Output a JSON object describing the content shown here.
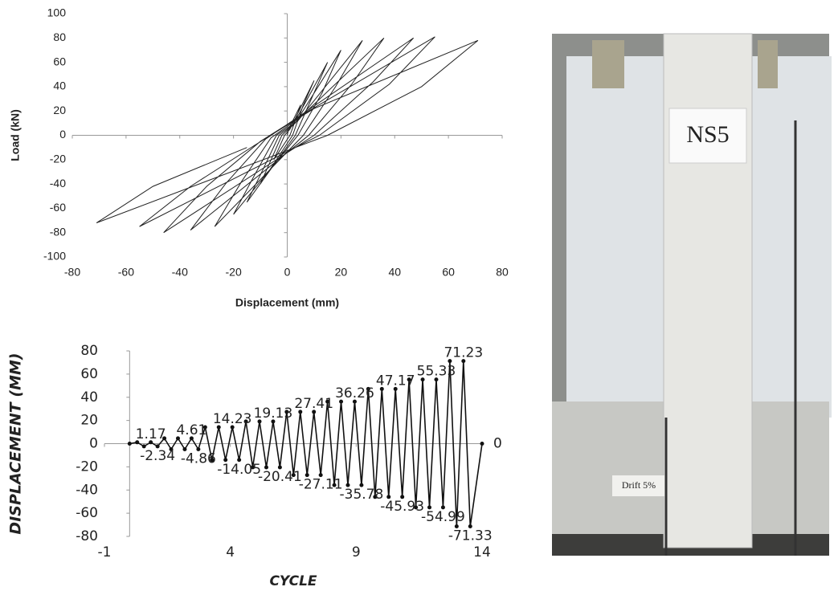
{
  "chart_data": [
    {
      "type": "line",
      "x_label": "Displacement (mm)",
      "y_label": "Load (kN)",
      "color": "#222",
      "x": [
        0,
        0.5,
        5,
        3,
        1,
        -5,
        -3,
        -1,
        1,
        10,
        6,
        2,
        -10,
        -6,
        -2,
        2,
        15,
        9,
        3,
        -15,
        -9,
        -3,
        3,
        20,
        13,
        4,
        -20,
        -12,
        -4,
        4,
        28,
        18,
        6,
        -27,
        -17,
        -6,
        5,
        36,
        24,
        8,
        -36,
        -23,
        -8,
        6,
        47,
        32,
        10,
        -46,
        -30,
        -10,
        8,
        55,
        38,
        12,
        -55,
        -36,
        -12,
        10,
        71,
        50,
        15,
        -71,
        -50,
        -15
      ],
      "values": [
        0,
        5,
        25,
        12,
        0,
        -20,
        -10,
        0,
        5,
        45,
        25,
        0,
        -40,
        -20,
        0,
        8,
        60,
        30,
        0,
        -55,
        -28,
        0,
        10,
        70,
        35,
        0,
        -65,
        -32,
        0,
        12,
        78,
        40,
        0,
        -75,
        -38,
        -2,
        15,
        80,
        42,
        0,
        -78,
        -40,
        -3,
        18,
        80,
        44,
        0,
        -80,
        -42,
        -5,
        20,
        81,
        42,
        0,
        -75,
        -42,
        -8,
        22,
        78,
        40,
        0,
        -72,
        -42,
        -10
      ],
      "xlim": [
        -80,
        80
      ],
      "xticks": [
        -80,
        -60,
        -40,
        -20,
        0,
        20,
        40,
        60,
        80
      ],
      "ylim": [
        -100,
        100
      ],
      "yticks": [
        -100,
        -80,
        -60,
        -40,
        -20,
        0,
        20,
        40,
        60,
        80,
        100
      ]
    },
    {
      "type": "line",
      "x_label": "CYCLE",
      "y_label": "DISPLACEMENT (MM)",
      "color": "#111",
      "markers": true,
      "x": [
        0,
        0.3,
        0.57,
        0.84,
        1.11,
        1.38,
        1.65,
        1.92,
        2.19,
        2.46,
        2.73,
        3.0,
        3.27,
        3.54,
        3.81,
        4.08,
        4.35,
        4.62,
        4.89,
        5.16,
        5.43,
        5.7,
        5.97,
        6.24,
        6.51,
        6.78,
        7.05,
        7.32,
        7.59,
        7.86,
        8.13,
        8.4,
        8.67,
        8.94,
        9.21,
        9.48,
        9.75,
        10.02,
        10.29,
        10.56,
        10.83,
        11.1,
        11.37,
        11.64,
        11.91,
        12.18,
        12.45,
        12.72,
        12.99,
        13.26,
        13.53,
        14
      ],
      "values": [
        0,
        1.17,
        -2.34,
        1.17,
        -2.34,
        4.61,
        -4.86,
        4.61,
        -4.86,
        4.61,
        -4.86,
        14.23,
        -14.05,
        14.23,
        -14.05,
        14.23,
        -14.05,
        19.13,
        -20.41,
        19.13,
        -20.41,
        19.13,
        -20.41,
        27.41,
        -27.11,
        27.41,
        -27.11,
        27.41,
        -27.11,
        36.26,
        -35.78,
        36.26,
        -35.78,
        36.26,
        -35.78,
        47.17,
        -45.93,
        47.17,
        -45.93,
        47.17,
        -45.93,
        55.33,
        -54.99,
        55.33,
        -54.99,
        55.33,
        -54.99,
        71.23,
        -71.33,
        71.23,
        -71.33,
        0
      ],
      "value_labels": [
        null,
        null,
        null,
        "1.17",
        "-2.34",
        null,
        null,
        null,
        null,
        "4.61",
        "-4.86",
        null,
        null,
        null,
        null,
        "14.23",
        "-14.05",
        null,
        null,
        null,
        null,
        "19.13",
        "-20.41",
        null,
        null,
        null,
        null,
        "27.41",
        "-27.11",
        null,
        null,
        null,
        null,
        "36.26",
        "-35.78",
        null,
        null,
        null,
        null,
        "47.17",
        "-45.93",
        null,
        null,
        null,
        null,
        "55.33",
        "-54.99",
        null,
        null,
        "71.23",
        "-71.33",
        "0"
      ],
      "xlim": [
        -1,
        14
      ],
      "xticks": [
        -1,
        4,
        9,
        14
      ],
      "ylim": [
        -80,
        80
      ],
      "yticks": [
        -80,
        -60,
        -40,
        -20,
        0,
        20,
        40,
        60,
        80
      ]
    }
  ],
  "photo": {
    "sign": "NS5",
    "caption": "Drift 5%"
  }
}
